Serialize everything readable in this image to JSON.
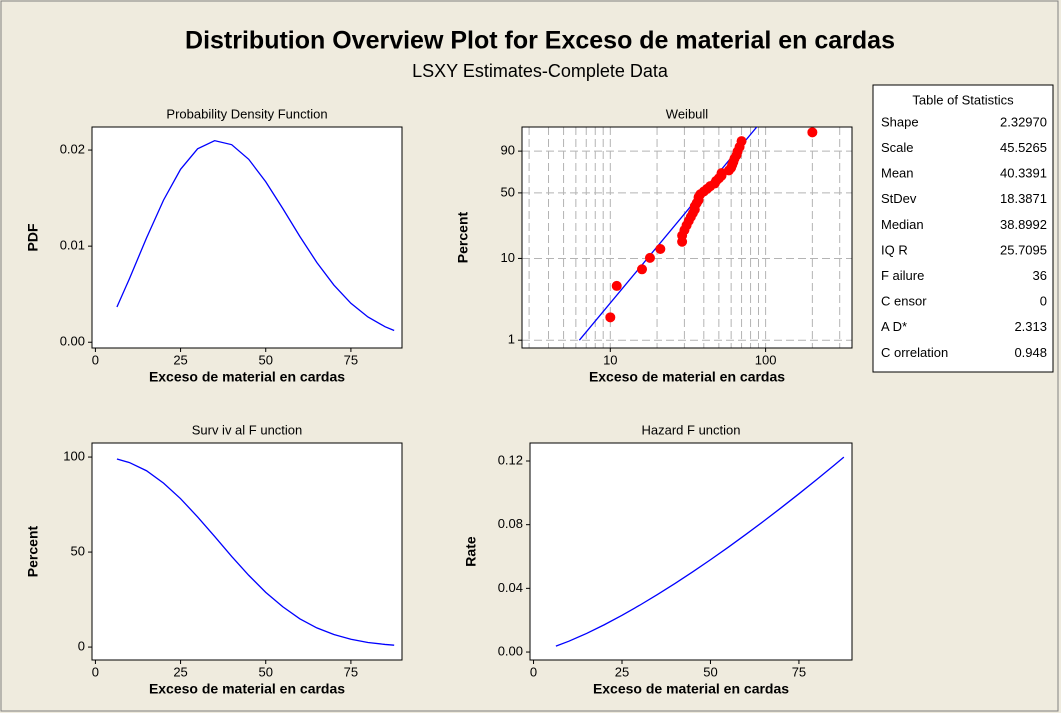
{
  "title": "Distribution Overview Plot for Exceso de material en cardas",
  "subtitle": "LSXY Estimates-Complete Data",
  "chart_data": [
    {
      "type": "line",
      "title": "Probability Density Function",
      "xlabel": "Exceso de material en cardas",
      "ylabel": "PDF",
      "color": "#0000ff",
      "x": [
        6.32,
        10,
        15,
        20,
        25,
        30,
        35,
        40,
        45,
        50,
        55,
        60,
        65,
        70,
        75,
        80,
        85,
        87.7
      ],
      "values": [
        0.00367,
        0.00662,
        0.01085,
        0.01479,
        0.018,
        0.02013,
        0.02098,
        0.02056,
        0.01904,
        0.0167,
        0.01392,
        0.01102,
        0.0083,
        0.00595,
        0.00405,
        0.00263,
        0.00162,
        0.00122
      ],
      "xlim": [
        -1,
        90
      ],
      "xticks": [
        0,
        25,
        50,
        75
      ],
      "ylim": [
        -0.0006,
        0.0224
      ],
      "yticks": [
        {
          "value": 0,
          "label": "0.00"
        },
        0.01,
        0.02
      ]
    },
    {
      "type": "probability",
      "title": "Weibull",
      "xlabel": "Exceso de material en cardas",
      "ylabel": "Percent",
      "xscale": "log",
      "yscale": "weibull",
      "grid": true,
      "color": "#ff0000",
      "x": [
        10,
        11,
        16,
        18,
        21,
        29,
        29,
        30,
        31,
        32,
        33,
        34,
        35,
        35,
        36,
        37,
        37,
        38,
        40,
        42,
        44,
        47,
        48,
        50,
        52,
        52,
        58,
        60,
        61,
        62,
        63,
        65,
        66,
        68,
        70,
        200
      ],
      "values": [
        1.92,
        4.67,
        7.42,
        10.16,
        12.91,
        15.66,
        18.41,
        21.15,
        23.9,
        26.65,
        29.4,
        32.14,
        34.89,
        37.64,
        40.38,
        43.13,
        45.88,
        48.63,
        51.37,
        54.12,
        56.87,
        59.62,
        62.36,
        65.11,
        67.86,
        70.6,
        73.35,
        76.1,
        78.85,
        81.59,
        84.34,
        87.09,
        89.84,
        92.58,
        95.33,
        98.08
      ],
      "fit_color": "#0000ff",
      "fit_x": [
        6.32,
        87.7
      ],
      "fit_values": [
        1,
        99
      ],
      "xlim": [
        2.7,
        360
      ],
      "xticks": [
        10,
        100
      ],
      "xgrid": [
        3,
        4,
        5,
        6,
        7,
        8,
        9,
        10,
        20,
        30,
        40,
        50,
        60,
        70,
        80,
        90,
        100,
        200,
        300
      ],
      "ylim": [
        0.8,
        99
      ],
      "yticks": [
        1,
        10,
        50,
        90
      ]
    },
    {
      "type": "line",
      "title": "Surv iv al F unction",
      "xlabel": "Exceso de material en cardas",
      "ylabel": "Percent",
      "color": "#0000ff",
      "x": [
        6.32,
        10,
        15,
        20,
        25,
        30,
        35,
        40,
        45,
        50,
        55,
        60,
        65,
        70,
        75,
        80,
        85,
        87.7
      ],
      "values": [
        99,
        97.1,
        92.8,
        86.3,
        78.1,
        68.5,
        58.2,
        47.7,
        37.8,
        28.8,
        21.2,
        14.9,
        10.1,
        6.6,
        4.1,
        2.4,
        1.4,
        1
      ],
      "xlim": [
        -1,
        90
      ],
      "xticks": [
        0,
        25,
        50,
        75
      ],
      "ylim": [
        -6.8,
        107.4
      ],
      "yticks": [
        0,
        50,
        100
      ]
    },
    {
      "type": "line",
      "title": "Hazard F unction",
      "xlabel": "Exceso de material en cardas",
      "ylabel": "Rate",
      "color": "#0000ff",
      "x": [
        6.32,
        10,
        15,
        20,
        25,
        30,
        35,
        40,
        45,
        50,
        55,
        60,
        65,
        70,
        75,
        80,
        85,
        87.7
      ],
      "values": [
        0.00371,
        0.00682,
        0.01169,
        0.01714,
        0.02306,
        0.02939,
        0.03607,
        0.04308,
        0.05039,
        0.05796,
        0.06579,
        0.07386,
        0.08216,
        0.09067,
        0.09938,
        0.10829,
        0.11737,
        0.1224
      ],
      "xlim": [
        -1,
        90
      ],
      "xticks": [
        0,
        25,
        50,
        75
      ],
      "ylim": [
        -0.005,
        0.1313
      ],
      "yticks": [
        {
          "value": 0,
          "label": "0.00"
        },
        0.04,
        0.08,
        0.12
      ]
    }
  ],
  "table": {
    "title": "Table of Statistics",
    "rows": [
      [
        "Shape",
        "2.32970"
      ],
      [
        "Scale",
        "45.5265"
      ],
      [
        "Mean",
        "40.3391"
      ],
      [
        "StDev",
        "18.3871"
      ],
      [
        "Median",
        "38.8992"
      ],
      [
        "IQ R",
        "25.7095"
      ],
      [
        "F ailure",
        "36"
      ],
      [
        "C ensor",
        "0"
      ],
      [
        "A D*",
        "2.313"
      ],
      [
        "C orrelation",
        "0.948"
      ]
    ]
  }
}
